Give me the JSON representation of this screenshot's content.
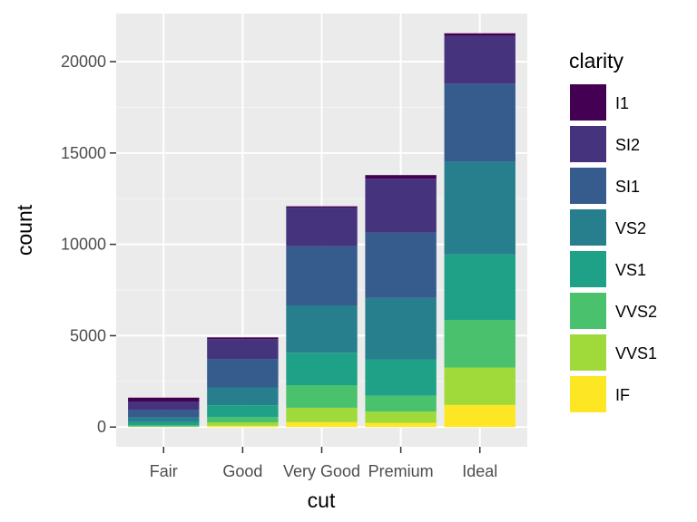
{
  "chart_data": {
    "type": "bar",
    "stacked": true,
    "categories": [
      "Fair",
      "Good",
      "Very Good",
      "Premium",
      "Ideal"
    ],
    "xlabel": "cut",
    "ylabel": "count",
    "ylim": [
      -1080,
      22630
    ],
    "yticks": [
      0,
      5000,
      10000,
      15000,
      20000
    ],
    "ytick_labels": [
      "0",
      "5000",
      "10000",
      "15000",
      "20000"
    ],
    "grid": true,
    "legend": {
      "title": "clarity",
      "placement": "right"
    },
    "series": [
      {
        "name": "I1",
        "color": "#440154",
        "values": [
          210,
          96,
          84,
          205,
          146
        ]
      },
      {
        "name": "SI2",
        "color": "#46337E",
        "values": [
          466,
          1081,
          2100,
          2949,
          2598
        ]
      },
      {
        "name": "SI1",
        "color": "#365C8D",
        "values": [
          408,
          1560,
          3240,
          3575,
          4282
        ]
      },
      {
        "name": "VS2",
        "color": "#277F8E",
        "values": [
          261,
          978,
          2591,
          3357,
          5071
        ]
      },
      {
        "name": "VS1",
        "color": "#1FA187",
        "values": [
          170,
          648,
          1775,
          1989,
          3589
        ]
      },
      {
        "name": "VVS2",
        "color": "#4AC16D",
        "values": [
          69,
          286,
          1235,
          870,
          2606
        ]
      },
      {
        "name": "VVS1",
        "color": "#9FDA3A",
        "values": [
          17,
          186,
          789,
          616,
          2047
        ]
      },
      {
        "name": "IF",
        "color": "#FDE725",
        "values": [
          9,
          71,
          268,
          230,
          1212
        ]
      }
    ]
  }
}
